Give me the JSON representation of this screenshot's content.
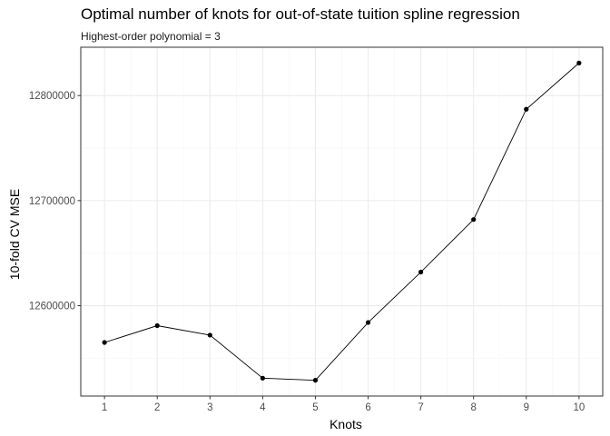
{
  "chart_data": {
    "type": "line",
    "title": "Optimal number of knots for out-of-state tuition spline regression",
    "subtitle": "Highest-order polynomial = 3",
    "xlabel": "Knots",
    "ylabel": "10-fold CV MSE",
    "x": [
      1,
      2,
      3,
      4,
      5,
      6,
      7,
      8,
      9,
      10
    ],
    "y": [
      12565000,
      12581000,
      12572000,
      12531000,
      12529000,
      12584000,
      12632000,
      12682000,
      12787000,
      12831000
    ],
    "x_ticks": [
      "1",
      "2",
      "3",
      "4",
      "5",
      "6",
      "7",
      "8",
      "9",
      "10"
    ],
    "y_ticks": [
      "12600000",
      "12700000",
      "12800000"
    ],
    "y_tick_values": [
      12600000,
      12700000,
      12800000
    ],
    "xlim": [
      0.55,
      10.45
    ],
    "ylim": [
      12514000,
      12846000
    ],
    "grid": true,
    "line_color": "#000000",
    "point_color": "#000000",
    "panel_border_color": "#333333",
    "grid_major_color": "#ebebeb",
    "grid_minor_color": "#f5f5f5"
  }
}
